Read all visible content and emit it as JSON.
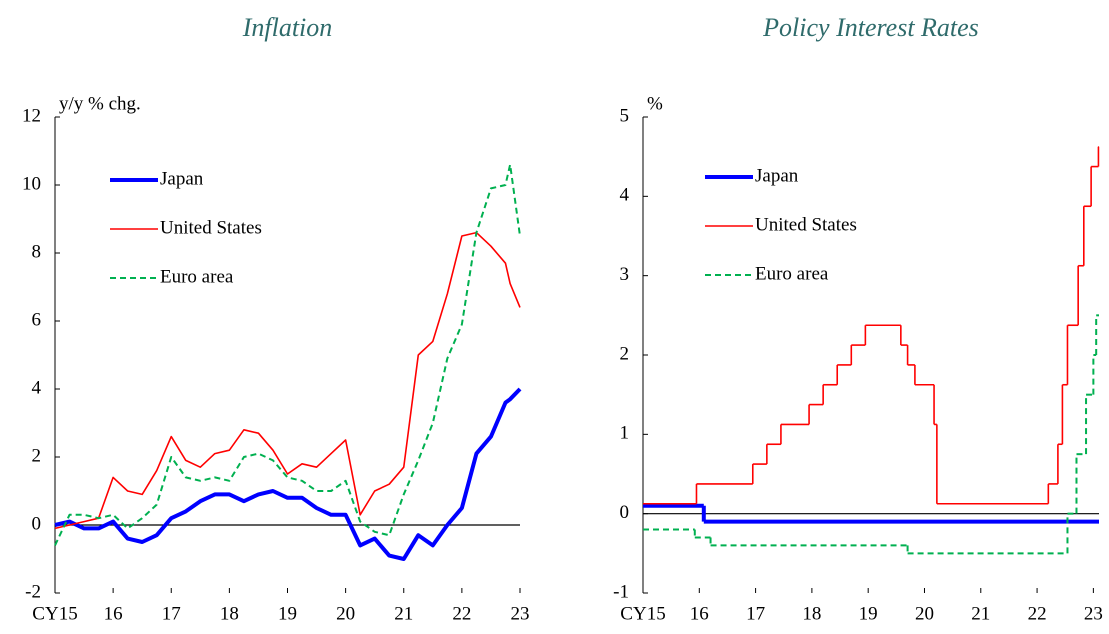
{
  "chart_data": [
    {
      "type": "line",
      "title": "Inflation",
      "ylabel": "y/y % chg.",
      "x": [
        15.0,
        15.25,
        15.5,
        15.75,
        16.0,
        16.25,
        16.5,
        16.75,
        17.0,
        17.25,
        17.5,
        17.75,
        18.0,
        18.25,
        18.5,
        18.75,
        19.0,
        19.25,
        19.5,
        19.75,
        20.0,
        20.25,
        20.5,
        20.75,
        21.0,
        21.25,
        21.5,
        21.75,
        22.0,
        22.25,
        22.5,
        22.75,
        22.83,
        23.0
      ],
      "series": [
        {
          "name": "Japan",
          "color": "#0000ff",
          "values": [
            0,
            0.1,
            -0.1,
            -0.1,
            0.1,
            -0.4,
            -0.5,
            -0.3,
            0.2,
            0.4,
            0.7,
            0.9,
            0.9,
            0.7,
            0.9,
            1.0,
            0.8,
            0.8,
            0.5,
            0.3,
            0.3,
            -0.6,
            -0.4,
            -0.9,
            -1.0,
            -0.3,
            -0.6,
            0.0,
            0.5,
            2.1,
            2.6,
            3.6,
            3.7,
            4.0
          ]
        },
        {
          "name": "United States",
          "color": "#ff0000",
          "values": [
            -0.1,
            0,
            0.1,
            0.2,
            1.4,
            1.0,
            0.9,
            1.6,
            2.6,
            1.9,
            1.7,
            2.1,
            2.2,
            2.8,
            2.7,
            2.2,
            1.5,
            1.8,
            1.7,
            2.1,
            2.5,
            0.3,
            1.0,
            1.2,
            1.7,
            5.0,
            5.4,
            6.8,
            8.5,
            8.6,
            8.2,
            7.7,
            7.1,
            6.4
          ]
        },
        {
          "name": "Euro area",
          "color": "#00b050",
          "values": [
            -0.6,
            0.3,
            0.3,
            0.2,
            0.3,
            -0.1,
            0.2,
            0.6,
            2.0,
            1.4,
            1.3,
            1.4,
            1.3,
            2.0,
            2.1,
            1.9,
            1.4,
            1.3,
            1.0,
            1.0,
            1.3,
            0.1,
            -0.2,
            -0.3,
            0.9,
            1.9,
            3.0,
            4.9,
            5.9,
            8.6,
            9.9,
            10.0,
            10.6,
            8.5
          ]
        }
      ],
      "xlim": [
        15,
        23
      ],
      "xticks": [
        {
          "value": 15,
          "label": "CY15"
        },
        16,
        17,
        18,
        19,
        20,
        21,
        22,
        23
      ],
      "ylim": [
        -2,
        12
      ],
      "yticks": [
        -2,
        0,
        2,
        4,
        6,
        8,
        10,
        12
      ],
      "step": false
    },
    {
      "type": "line",
      "title": "Policy Interest Rates",
      "ylabel": "%",
      "series": [
        {
          "name": "Japan",
          "color": "#0000ff",
          "x": [
            15.0,
            16.08
          ],
          "values": [
            0.1,
            -0.1
          ]
        },
        {
          "name": "United States",
          "color": "#ff0000",
          "x": [
            15.0,
            15.95,
            16.95,
            17.2,
            17.45,
            17.95,
            18.2,
            18.45,
            18.7,
            18.95,
            19.58,
            19.7,
            19.83,
            20.17,
            20.22,
            22.2,
            22.37,
            22.45,
            22.54,
            22.73,
            22.83,
            22.96,
            23.09
          ],
          "values": [
            0.125,
            0.375,
            0.625,
            0.875,
            1.125,
            1.375,
            1.625,
            1.875,
            2.125,
            2.375,
            2.125,
            1.875,
            1.625,
            1.125,
            0.125,
            0.375,
            0.875,
            1.625,
            2.375,
            3.125,
            3.875,
            4.375,
            4.625
          ]
        },
        {
          "name": "Euro area",
          "color": "#00b050",
          "x": [
            15.0,
            15.92,
            16.2,
            19.7,
            22.54,
            22.7,
            22.87,
            23.0,
            23.05
          ],
          "values": [
            -0.2,
            -0.3,
            -0.4,
            -0.5,
            0,
            0.75,
            1.5,
            2.0,
            2.5
          ]
        }
      ],
      "xlim": [
        15,
        23.1
      ],
      "xticks": [
        {
          "value": 15,
          "label": "CY15"
        },
        16,
        17,
        18,
        19,
        20,
        21,
        22,
        23
      ],
      "ylim": [
        -1,
        5
      ],
      "yticks": [
        -1,
        0,
        1,
        2,
        3,
        4,
        5
      ],
      "step": true
    }
  ]
}
